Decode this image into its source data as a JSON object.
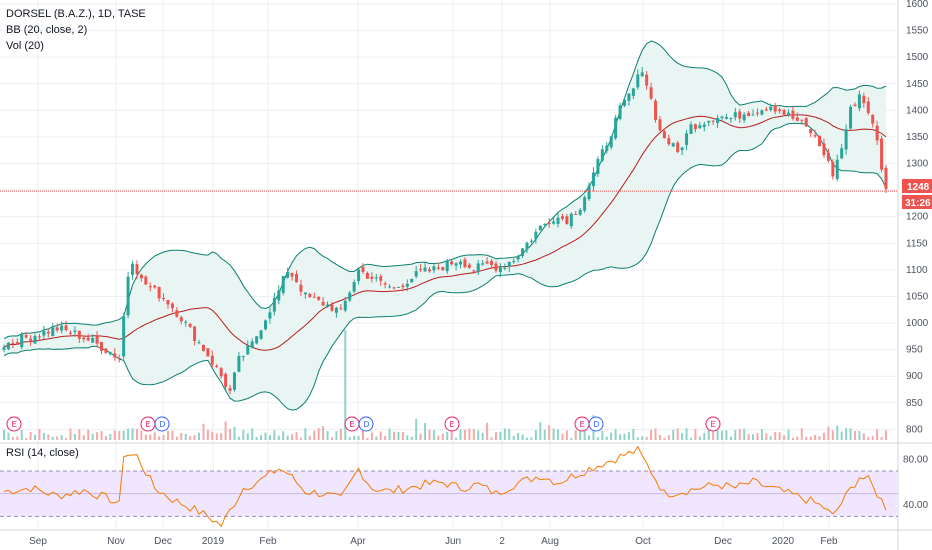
{
  "legend": {
    "symbol": "DORSEL (B.A.Z.), 1D, TASE",
    "bb": "BB (20, close, 2)",
    "vol": "Vol (20)",
    "rsi": "RSI (14, close)"
  },
  "price_tags": {
    "last": "1248",
    "countdown": "31:26"
  },
  "colors": {
    "up": "#26a69a",
    "down": "#ef5350",
    "basis": "#b71c1c",
    "band": "#0b7f71",
    "band_fill": "#e8f5f3",
    "rsi": "#f57c00",
    "rsi_fill": "#f1e6ff",
    "last_line": "#ef5350",
    "grid": "#eceff2"
  },
  "events": [
    {
      "label": "E",
      "color": "#e91e63",
      "x_month": "Sep_pre"
    },
    {
      "label": "E",
      "color": "#e91e63",
      "x_month": "Nov_late"
    },
    {
      "label": "D",
      "color": "#2962ff",
      "x_month": "Nov_late"
    },
    {
      "label": "E",
      "color": "#e91e63",
      "x_month": "Mar_late"
    },
    {
      "label": "D",
      "color": "#2962ff",
      "x_month": "Mar_late"
    },
    {
      "label": "E",
      "color": "#e91e63",
      "x_month": "May_mid"
    },
    {
      "label": "E",
      "color": "#e91e63",
      "x_month": "Aug_late"
    },
    {
      "label": "D",
      "color": "#2962ff",
      "x_month": "Aug_late"
    },
    {
      "label": "E",
      "color": "#e91e63",
      "x_month": "Nov_late2"
    }
  ],
  "chart_data": [
    {
      "type": "candlestick",
      "title": "DORSEL (B.A.Z.), 1D, TASE",
      "ylim": [
        780,
        1600
      ],
      "y_ticks": [
        800,
        850,
        900,
        950,
        1000,
        1050,
        1100,
        1150,
        1200,
        1250,
        1300,
        1350,
        1400,
        1450,
        1500,
        1550,
        1600
      ],
      "x_ticks": [
        "Sep",
        "Nov",
        "Dec",
        "2019",
        "Feb",
        "Apr",
        "Jun",
        "2",
        "Aug",
        "Oct",
        "Dec",
        "2020",
        "Feb"
      ],
      "last_price": 1248,
      "close_path": [
        [
          0,
          960
        ],
        [
          4,
          970
        ],
        [
          8,
          980
        ],
        [
          12,
          990
        ],
        [
          16,
          980
        ],
        [
          20,
          965
        ],
        [
          23,
          950
        ],
        [
          26,
          935
        ],
        [
          28,
          1090
        ],
        [
          29,
          1120
        ],
        [
          31,
          1080
        ],
        [
          34,
          1060
        ],
        [
          37,
          1040
        ],
        [
          40,
          1010
        ],
        [
          43,
          975
        ],
        [
          46,
          940
        ],
        [
          49,
          900
        ],
        [
          51,
          870
        ],
        [
          53,
          930
        ],
        [
          56,
          960
        ],
        [
          59,
          1010
        ],
        [
          62,
          1060
        ],
        [
          64,
          1100
        ],
        [
          66,
          1080
        ],
        [
          68,
          1050
        ],
        [
          71,
          1040
        ],
        [
          74,
          1030
        ],
        [
          76,
          1020
        ],
        [
          78,
          1060
        ],
        [
          80,
          1100
        ],
        [
          82,
          1090
        ],
        [
          85,
          1075
        ],
        [
          88,
          1065
        ],
        [
          91,
          1080
        ],
        [
          94,
          1095
        ],
        [
          97,
          1100
        ],
        [
          100,
          1110
        ],
        [
          103,
          1120
        ],
        [
          106,
          1100
        ],
        [
          109,
          1110
        ],
        [
          112,
          1105
        ],
        [
          115,
          1120
        ],
        [
          118,
          1150
        ],
        [
          121,
          1180
        ],
        [
          124,
          1200
        ],
        [
          127,
          1195
        ],
        [
          130,
          1220
        ],
        [
          133,
          1280
        ],
        [
          136,
          1340
        ],
        [
          139,
          1400
        ],
        [
          142,
          1440
        ],
        [
          144,
          1480
        ],
        [
          146,
          1420
        ],
        [
          148,
          1360
        ],
        [
          150,
          1340
        ],
        [
          152,
          1320
        ],
        [
          155,
          1370
        ],
        [
          158,
          1380
        ],
        [
          161,
          1390
        ],
        [
          164,
          1385
        ],
        [
          167,
          1395
        ],
        [
          170,
          1400
        ],
        [
          173,
          1410
        ],
        [
          176,
          1395
        ],
        [
          179,
          1380
        ],
        [
          182,
          1360
        ],
        [
          185,
          1320
        ],
        [
          187,
          1280
        ],
        [
          189,
          1330
        ],
        [
          191,
          1400
        ],
        [
          193,
          1430
        ],
        [
          195,
          1400
        ],
        [
          197,
          1340
        ],
        [
          199,
          1248
        ]
      ],
      "vol_spike_index": 77
    },
    {
      "type": "line",
      "title": "RSI (14, close)",
      "ylim": [
        18,
        92
      ],
      "y_ticks": [
        40,
        80
      ],
      "band": [
        30,
        70
      ],
      "values_path": [
        [
          0,
          52
        ],
        [
          6,
          55
        ],
        [
          12,
          48
        ],
        [
          18,
          53
        ],
        [
          24,
          45
        ],
        [
          26,
          40
        ],
        [
          27,
          85
        ],
        [
          30,
          83
        ],
        [
          34,
          55
        ],
        [
          38,
          45
        ],
        [
          42,
          38
        ],
        [
          46,
          30
        ],
        [
          49,
          22
        ],
        [
          51,
          35
        ],
        [
          54,
          55
        ],
        [
          58,
          62
        ],
        [
          62,
          72
        ],
        [
          64,
          68
        ],
        [
          68,
          52
        ],
        [
          72,
          50
        ],
        [
          76,
          45
        ],
        [
          78,
          58
        ],
        [
          80,
          72
        ],
        [
          83,
          55
        ],
        [
          87,
          52
        ],
        [
          91,
          55
        ],
        [
          95,
          58
        ],
        [
          99,
          60
        ],
        [
          103,
          55
        ],
        [
          107,
          58
        ],
        [
          111,
          50
        ],
        [
          115,
          58
        ],
        [
          118,
          62
        ],
        [
          121,
          66
        ],
        [
          125,
          60
        ],
        [
          128,
          65
        ],
        [
          132,
          72
        ],
        [
          136,
          78
        ],
        [
          140,
          84
        ],
        [
          143,
          88
        ],
        [
          146,
          70
        ],
        [
          149,
          50
        ],
        [
          153,
          52
        ],
        [
          157,
          55
        ],
        [
          161,
          58
        ],
        [
          165,
          55
        ],
        [
          169,
          60
        ],
        [
          173,
          55
        ],
        [
          177,
          50
        ],
        [
          181,
          45
        ],
        [
          185,
          38
        ],
        [
          187,
          30
        ],
        [
          190,
          48
        ],
        [
          193,
          65
        ],
        [
          195,
          62
        ],
        [
          197,
          50
        ],
        [
          199,
          38
        ]
      ]
    }
  ]
}
